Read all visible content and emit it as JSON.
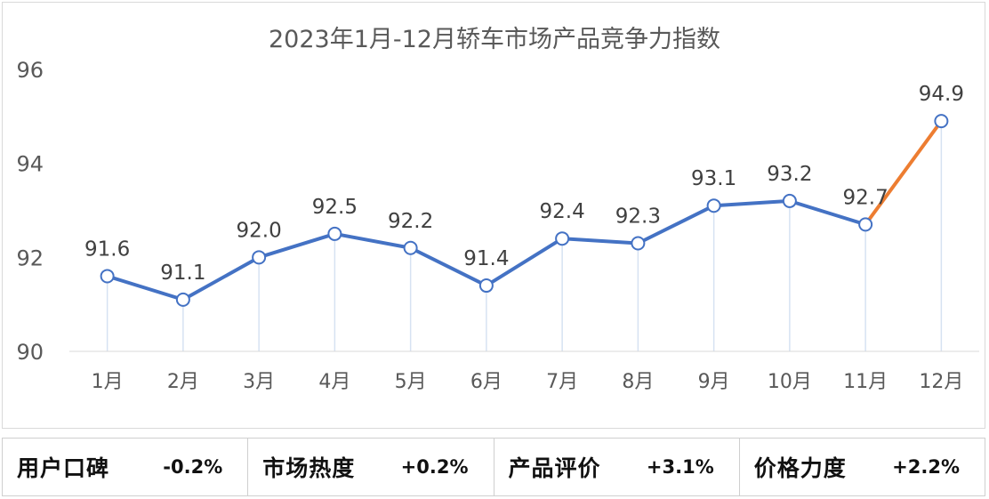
{
  "chart_data": {
    "type": "line",
    "title": "2023年1月-12月轿车市场产品竞争力指数",
    "categories": [
      "1月",
      "2月",
      "3月",
      "4月",
      "5月",
      "6月",
      "7月",
      "8月",
      "9月",
      "10月",
      "11月",
      "12月"
    ],
    "values": [
      91.6,
      91.1,
      92.0,
      92.5,
      92.2,
      91.4,
      92.4,
      92.3,
      93.1,
      93.2,
      92.7,
      94.9
    ],
    "data_labels": [
      "91.6",
      "91.1",
      "92.0",
      "92.5",
      "92.2",
      "91.4",
      "92.4",
      "92.3",
      "93.1",
      "93.2",
      "92.7",
      "94.9"
    ],
    "ylim": [
      90,
      96
    ],
    "yticks": [
      "90",
      "92",
      "94",
      "96"
    ],
    "xlabel": "",
    "ylabel": "",
    "grid": false,
    "legend": "none",
    "colors": {
      "line": "#4472c4",
      "highlight_segment": "#ed7d31",
      "marker_fill": "#ffffff",
      "drop_line": "#d6e2f2"
    }
  },
  "metrics": [
    {
      "label": "用户口碑",
      "value": "-0.2%"
    },
    {
      "label": "市场热度",
      "value": "+0.2%"
    },
    {
      "label": "产品评价",
      "value": "+3.1%"
    },
    {
      "label": "价格力度",
      "value": "+2.2%"
    }
  ]
}
